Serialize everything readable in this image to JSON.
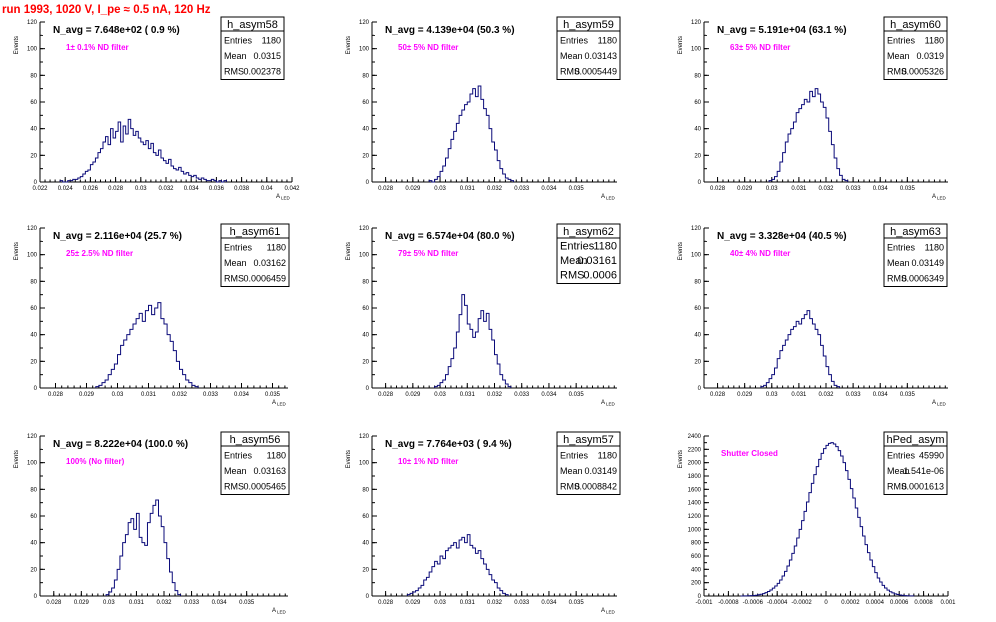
{
  "header": {
    "title": "run 1993,  1020 V, I_pe ≈ 0.5 nA, 120 Hz"
  },
  "chart_data": [
    {
      "type": "bar",
      "name": "h_asym58",
      "nAvgText": "N_avg = 7.648e+02 ( 0.9 %)",
      "filterText": "1± 0.1% ND filter",
      "stats": {
        "entries": "1180",
        "mean": "0.0315",
        "rms": "0.002378"
      },
      "xlabel": "A",
      "xlabelSub": "LED",
      "ylabel": "Events",
      "xlim": [
        0.022,
        0.042
      ],
      "ylim": [
        0,
        120
      ],
      "xticks": [
        0.022,
        0.024,
        0.026,
        0.028,
        0.03,
        0.032,
        0.034,
        0.036,
        0.038,
        0.04,
        0.042
      ],
      "xtickLabels": [
        "0.022",
        "0.024",
        "0.026",
        "0.028",
        "0.03",
        "0.032",
        "0.034",
        "0.036",
        "0.038",
        "0.04",
        "0.042"
      ],
      "yticks": [
        0,
        20,
        40,
        60,
        80,
        100,
        120
      ],
      "ytickLabels": [
        "0",
        "20",
        "40",
        "60",
        "80",
        "100",
        "120"
      ],
      "binStart": 0.0236,
      "binWidth": 0.0002,
      "values": [
        1,
        0,
        0,
        1,
        1,
        2,
        2,
        3,
        4,
        6,
        8,
        9,
        13,
        15,
        18,
        22,
        25,
        30,
        34,
        28,
        40,
        33,
        38,
        45,
        30,
        42,
        36,
        47,
        40,
        35,
        38,
        33,
        30,
        28,
        31,
        25,
        29,
        22,
        20,
        24,
        18,
        16,
        14,
        17,
        12,
        10,
        9,
        11,
        8,
        6,
        7,
        5,
        4,
        5,
        3,
        2,
        3,
        2,
        1,
        1,
        2,
        1,
        0,
        1,
        0,
        1
      ]
    },
    {
      "type": "bar",
      "name": "h_asym59",
      "nAvgText": "N_avg = 4.139e+04 (50.3 %)",
      "filterText": "50± 5% ND filter",
      "stats": {
        "entries": "1180",
        "mean": "0.03143",
        "rms": "0.0005449"
      },
      "xlabel": "A",
      "xlabelSub": "LED",
      "ylabel": "Events",
      "xlim": [
        0.0275,
        0.0365
      ],
      "ylim": [
        0,
        120
      ],
      "xticks": [
        0.028,
        0.029,
        0.03,
        0.031,
        0.032,
        0.033,
        0.034,
        0.035
      ],
      "xtickLabels": [
        "0.028",
        "0.029",
        "0.03",
        "0.031",
        "0.032",
        "0.033",
        "0.034",
        "0.035"
      ],
      "yticks": [
        0,
        20,
        40,
        60,
        80,
        100,
        120
      ],
      "ytickLabels": [
        "0",
        "20",
        "40",
        "60",
        "80",
        "100",
        "120"
      ],
      "binStart": 0.0296,
      "binWidth": 0.0001,
      "values": [
        1,
        0,
        2,
        4,
        8,
        12,
        18,
        25,
        32,
        38,
        44,
        50,
        54,
        58,
        60,
        66,
        70,
        64,
        72,
        62,
        55,
        50,
        40,
        30,
        24,
        16,
        10,
        6,
        3,
        2,
        1
      ]
    },
    {
      "type": "bar",
      "name": "h_asym60",
      "nAvgText": "N_avg = 5.191e+04 (63.1 %)",
      "filterText": "63± 5% ND filter",
      "stats": {
        "entries": "1180",
        "mean": "0.0319",
        "rms": "0.0005326"
      },
      "xlabel": "A",
      "xlabelSub": "LED",
      "ylabel": "Events",
      "xlim": [
        0.0275,
        0.0365
      ],
      "ylim": [
        0,
        120
      ],
      "xticks": [
        0.028,
        0.029,
        0.03,
        0.031,
        0.032,
        0.033,
        0.034,
        0.035
      ],
      "xtickLabels": [
        "0.028",
        "0.029",
        "0.03",
        "0.031",
        "0.032",
        "0.033",
        "0.034",
        "0.035"
      ],
      "yticks": [
        0,
        20,
        40,
        60,
        80,
        100,
        120
      ],
      "ytickLabels": [
        "0",
        "20",
        "40",
        "60",
        "80",
        "100",
        "120"
      ],
      "binStart": 0.0299,
      "binWidth": 0.0001,
      "values": [
        1,
        2,
        4,
        8,
        15,
        22,
        30,
        36,
        40,
        45,
        52,
        55,
        58,
        62,
        60,
        68,
        64,
        70,
        66,
        60,
        56,
        48,
        38,
        28,
        18,
        10,
        5,
        2,
        1
      ]
    },
    {
      "type": "bar",
      "name": "h_asym61",
      "nAvgText": "N_avg = 2.116e+04 (25.7 %)",
      "filterText": "25± 2.5% ND filter",
      "stats": {
        "entries": "1180",
        "mean": "0.03162",
        "rms": "0.0006459"
      },
      "xlabel": "A",
      "xlabelSub": "LED",
      "ylabel": "Events",
      "xlim": [
        0.0275,
        0.0355
      ],
      "ylim": [
        0,
        120
      ],
      "xticks": [
        0.028,
        0.029,
        0.03,
        0.031,
        0.032,
        0.033,
        0.034,
        0.035
      ],
      "xtickLabels": [
        "0.028",
        "0.029",
        "0.03",
        "0.031",
        "0.032",
        "0.033",
        "0.034",
        "0.035"
      ],
      "yticks": [
        0,
        20,
        40,
        60,
        80,
        100,
        120
      ],
      "ytickLabels": [
        "0",
        "20",
        "40",
        "60",
        "80",
        "100",
        "120"
      ],
      "binStart": 0.0293,
      "binWidth": 0.0001,
      "values": [
        1,
        2,
        4,
        6,
        10,
        14,
        18,
        25,
        32,
        36,
        40,
        44,
        48,
        52,
        56,
        50,
        58,
        62,
        55,
        60,
        64,
        52,
        48,
        40,
        35,
        28,
        20,
        14,
        10,
        6,
        4,
        2,
        1
      ]
    },
    {
      "type": "bar",
      "name": "h_asym62",
      "nAvgText": "N_avg = 6.574e+04 (80.0 %)",
      "filterText": "79± 5% ND filter",
      "stats": {
        "entries": "1180",
        "mean": "0.03161",
        "rms": "0.0006"
      },
      "xlabel": "A",
      "xlabelSub": "LED",
      "ylabel": "Events",
      "xlim": [
        0.0275,
        0.0365
      ],
      "ylim": [
        0,
        120
      ],
      "xticks": [
        0.028,
        0.029,
        0.03,
        0.031,
        0.032,
        0.033,
        0.034,
        0.035
      ],
      "xtickLabels": [
        "0.028",
        "0.029",
        "0.03",
        "0.031",
        "0.032",
        "0.033",
        "0.034",
        "0.035"
      ],
      "yticks": [
        0,
        20,
        40,
        60,
        80,
        100,
        120
      ],
      "ytickLabels": [
        "0",
        "20",
        "40",
        "60",
        "80",
        "100",
        "120"
      ],
      "binStart": 0.0298,
      "binWidth": 0.0001,
      "values": [
        1,
        2,
        4,
        6,
        10,
        16,
        22,
        30,
        42,
        55,
        70,
        62,
        48,
        44,
        38,
        42,
        52,
        58,
        50,
        56,
        44,
        36,
        25,
        18,
        10,
        6,
        3,
        1
      ]
    },
    {
      "type": "bar",
      "name": "h_asym63",
      "nAvgText": "N_avg = 3.328e+04 (40.5 %)",
      "filterText": "40± 4% ND filter",
      "stats": {
        "entries": "1180",
        "mean": "0.03149",
        "rms": "0.0006349"
      },
      "xlabel": "A",
      "xlabelSub": "LED",
      "ylabel": "Events",
      "xlim": [
        0.0275,
        0.0365
      ],
      "ylim": [
        0,
        120
      ],
      "xticks": [
        0.028,
        0.029,
        0.03,
        0.031,
        0.032,
        0.033,
        0.034,
        0.035
      ],
      "xtickLabels": [
        "0.028",
        "0.029",
        "0.03",
        "0.031",
        "0.032",
        "0.033",
        "0.034",
        "0.035"
      ],
      "yticks": [
        0,
        20,
        40,
        60,
        80,
        100,
        120
      ],
      "ytickLabels": [
        "0",
        "20",
        "40",
        "60",
        "80",
        "100",
        "120"
      ],
      "binStart": 0.0296,
      "binWidth": 0.0001,
      "values": [
        1,
        2,
        4,
        7,
        10,
        15,
        22,
        28,
        32,
        36,
        40,
        44,
        46,
        50,
        48,
        52,
        55,
        58,
        52,
        48,
        44,
        40,
        32,
        24,
        16,
        10,
        5,
        2,
        1
      ]
    },
    {
      "type": "bar",
      "name": "h_asym56",
      "nAvgText": "N_avg = 8.222e+04 (100.0 %)",
      "filterText": "100% (No filter)",
      "stats": {
        "entries": "1180",
        "mean": "0.03163",
        "rms": "0.0005465"
      },
      "xlabel": "A",
      "xlabelSub": "LED",
      "ylabel": "Events",
      "xlim": [
        0.0275,
        0.0365
      ],
      "ylim": [
        0,
        120
      ],
      "xticks": [
        0.028,
        0.029,
        0.03,
        0.031,
        0.032,
        0.033,
        0.034,
        0.035
      ],
      "xtickLabels": [
        "0.028",
        "0.029",
        "0.03",
        "0.031",
        "0.032",
        "0.033",
        "0.034",
        "0.035"
      ],
      "yticks": [
        0,
        20,
        40,
        60,
        80,
        100,
        120
      ],
      "ytickLabels": [
        "0",
        "20",
        "40",
        "60",
        "80",
        "100",
        "120"
      ],
      "binStart": 0.0299,
      "binWidth": 0.0001,
      "values": [
        1,
        3,
        6,
        12,
        20,
        30,
        40,
        46,
        55,
        58,
        50,
        62,
        44,
        40,
        38,
        55,
        62,
        68,
        72,
        60,
        52,
        40,
        28,
        18,
        10,
        4,
        1
      ]
    },
    {
      "type": "bar",
      "name": "h_asym57",
      "nAvgText": "N_avg = 7.764e+03 ( 9.4 %)",
      "filterText": "10± 1% ND filter",
      "stats": {
        "entries": "1180",
        "mean": "0.03149",
        "rms": "0.0008842"
      },
      "xlabel": "A",
      "xlabelSub": "LED",
      "ylabel": "Events",
      "xlim": [
        0.0275,
        0.0365
      ],
      "ylim": [
        0,
        120
      ],
      "xticks": [
        0.028,
        0.029,
        0.03,
        0.031,
        0.032,
        0.033,
        0.034,
        0.035
      ],
      "xtickLabels": [
        "0.028",
        "0.029",
        "0.03",
        "0.031",
        "0.032",
        "0.033",
        "0.034",
        "0.035"
      ],
      "yticks": [
        0,
        20,
        40,
        60,
        80,
        100,
        120
      ],
      "ytickLabels": [
        "0",
        "20",
        "40",
        "60",
        "80",
        "100",
        "120"
      ],
      "binStart": 0.0288,
      "binWidth": 0.0001,
      "values": [
        1,
        2,
        3,
        4,
        6,
        8,
        12,
        14,
        18,
        22,
        26,
        24,
        30,
        28,
        34,
        36,
        38,
        40,
        36,
        42,
        44,
        40,
        46,
        38,
        36,
        32,
        34,
        28,
        24,
        20,
        16,
        12,
        10,
        6,
        4,
        2,
        1
      ]
    },
    {
      "type": "bar",
      "name": "hPed_asym",
      "nAvgText": "",
      "filterText": "Shutter Closed",
      "stats": {
        "entries": "45990",
        "mean": "-1.541e-06",
        "rms": "0.0001613"
      },
      "xlabel": "",
      "xlabelSub": "",
      "ylabel": "Events",
      "xlim": [
        -0.001,
        0.001
      ],
      "ylim": [
        0,
        2400
      ],
      "xticks": [
        -0.001,
        -0.0008,
        -0.0006,
        -0.0004,
        -0.0002,
        0,
        0.0002,
        0.0004,
        0.0006,
        0.0008,
        0.001
      ],
      "xtickLabels": [
        "-0.001",
        "-0.0008",
        "-0.0006",
        "-0.0004",
        "-0.0002",
        "0",
        "0.0002",
        "0.0004",
        "0.0006",
        "0.0008",
        "0.001"
      ],
      "yticks": [
        0,
        200,
        400,
        600,
        800,
        1000,
        1200,
        1400,
        1600,
        1800,
        2000,
        2200,
        2400
      ],
      "ytickLabels": [
        "0",
        "200",
        "400",
        "600",
        "800",
        "1000",
        "1200",
        "1400",
        "1600",
        "1800",
        "2000",
        "2200",
        "2400"
      ],
      "binStart": -0.0007,
      "binWidth": 2e-05,
      "values": [
        0,
        1,
        2,
        3,
        5,
        8,
        12,
        18,
        26,
        36,
        50,
        68,
        90,
        118,
        150,
        190,
        240,
        300,
        370,
        450,
        540,
        640,
        750,
        870,
        1000,
        1130,
        1270,
        1410,
        1550,
        1690,
        1820,
        1940,
        2050,
        2140,
        2210,
        2260,
        2290,
        2300,
        2280,
        2240,
        2180,
        2100,
        2000,
        1880,
        1750,
        1610,
        1470,
        1320,
        1180,
        1040,
        900,
        770,
        650,
        540,
        440,
        350,
        270,
        210,
        160,
        120,
        88,
        64,
        46,
        32,
        22,
        15,
        10,
        6,
        4,
        2,
        1
      ]
    }
  ]
}
